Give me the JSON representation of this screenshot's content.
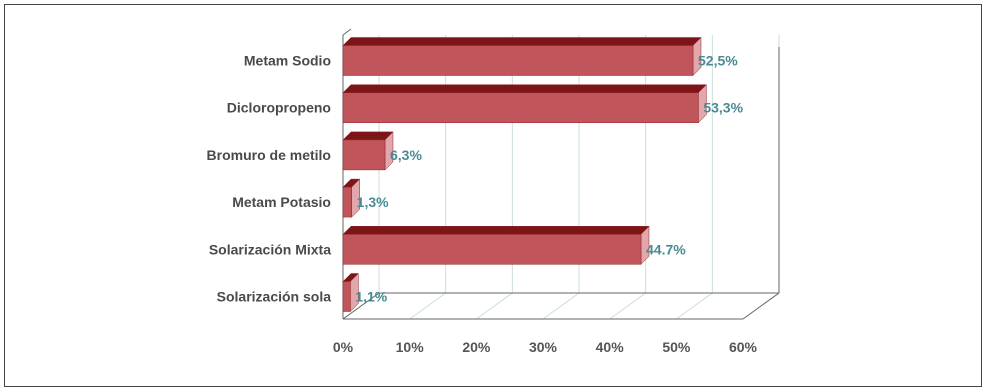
{
  "chart_data": {
    "type": "bar",
    "orientation": "horizontal",
    "style": "3d",
    "categories": [
      "Metam Sodio",
      "Dicloropropeno",
      "Bromuro de metilo",
      "Metam Potasio",
      "Solarización Mixta",
      "Solarización sola"
    ],
    "values": [
      52.5,
      53.3,
      6.3,
      1.3,
      44.7,
      1.1
    ],
    "data_labels": [
      "52,5%",
      "53,3%",
      "6,3%",
      "1,3%",
      "44.7%",
      "1,1%"
    ],
    "x_ticks": [
      "0%",
      "10%",
      "20%",
      "30%",
      "40%",
      "50%",
      "60%"
    ],
    "xlim": [
      0,
      60
    ],
    "grid": true,
    "legend": "none",
    "colors": {
      "bar_front": "#c0555b",
      "bar_top": "#7d1518",
      "bar_end": "#e2a7aa",
      "bar_stroke": "#8c2226",
      "gridline": "#c8e0d2",
      "axis": "#666666",
      "data_label": "#4a8a93"
    }
  }
}
